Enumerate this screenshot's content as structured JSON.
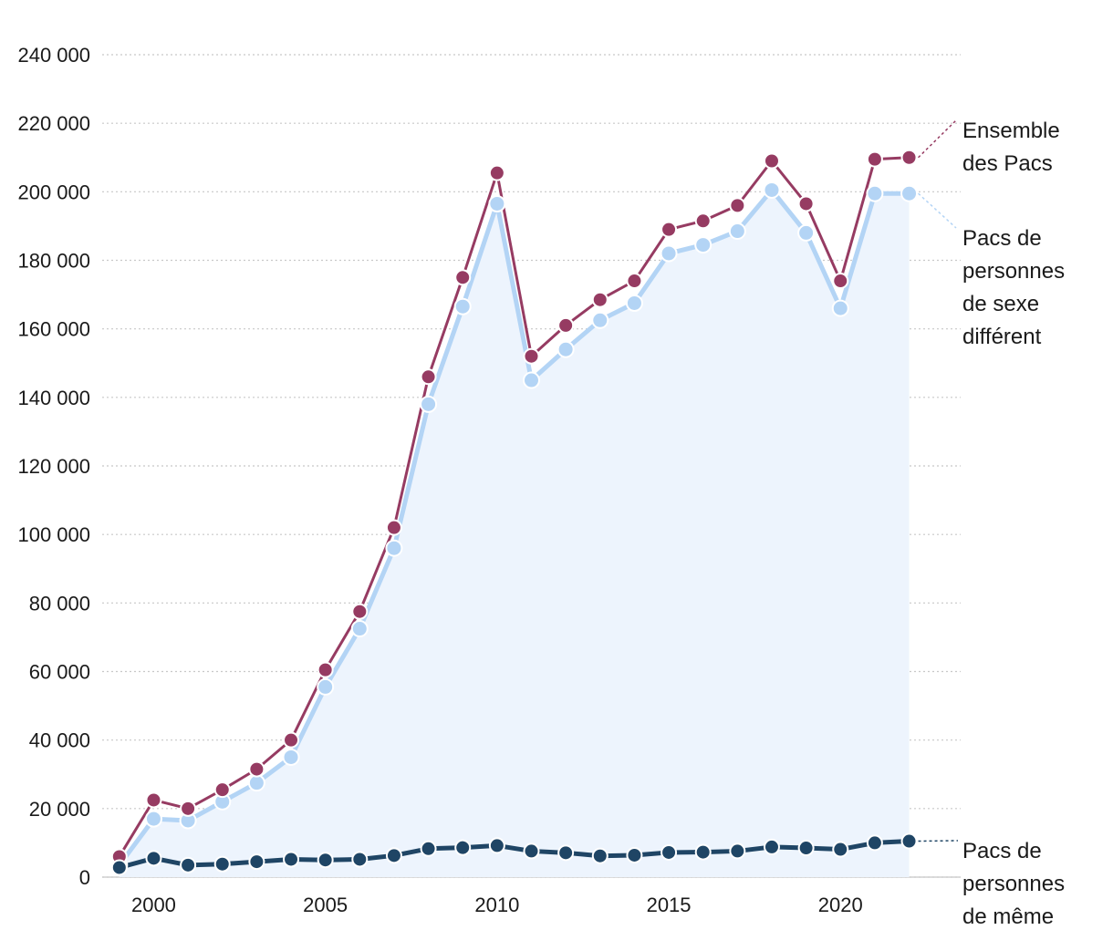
{
  "chart_data": {
    "type": "line",
    "title": "",
    "xlabel": "",
    "ylabel": "",
    "x": [
      1999,
      2000,
      2001,
      2002,
      2003,
      2004,
      2005,
      2006,
      2007,
      2008,
      2009,
      2010,
      2011,
      2012,
      2013,
      2014,
      2015,
      2016,
      2017,
      2018,
      2019,
      2020,
      2021,
      2022
    ],
    "xticks": [
      2000,
      2005,
      2010,
      2015,
      2020
    ],
    "xtick_labels": [
      "2000",
      "2005",
      "2010",
      "2015",
      "2020"
    ],
    "xlim": [
      1998.5,
      2023.5
    ],
    "ylim": [
      0,
      240000
    ],
    "yticks": [
      0,
      20000,
      40000,
      60000,
      80000,
      100000,
      120000,
      140000,
      160000,
      180000,
      200000,
      220000,
      240000
    ],
    "ytick_labels": [
      "0",
      "20 000",
      "40 000",
      "60 000",
      "80 000",
      "100 000",
      "120 000",
      "140 000",
      "160 000",
      "180 000",
      "200 000",
      "220 000",
      "240 000"
    ],
    "grid": true,
    "series": [
      {
        "name": "Pacs de personnes de sexe différent",
        "label_lines": [
          "Pacs de",
          "personnes",
          "de sexe",
          "différent"
        ],
        "color": "#b3d4f5",
        "area_fill": "#edf4fd",
        "values": [
          3500,
          17000,
          16500,
          22000,
          27500,
          35000,
          55500,
          72500,
          96000,
          138000,
          166500,
          196500,
          145000,
          154000,
          162500,
          167500,
          182000,
          184500,
          188500,
          200500,
          188000,
          166000,
          199500,
          199500
        ]
      },
      {
        "name": "Ensemble des Pacs",
        "label_lines": [
          "Ensemble",
          "des Pacs"
        ],
        "color": "#963b62",
        "values": [
          6000,
          22500,
          20000,
          25500,
          31500,
          40000,
          60500,
          77500,
          102000,
          146000,
          175000,
          205500,
          152000,
          161000,
          168500,
          174000,
          189000,
          191500,
          196000,
          209000,
          196500,
          174000,
          209500,
          210000
        ]
      },
      {
        "name": "Pacs de personnes de même sexe",
        "label_lines": [
          "Pacs de",
          "personnes",
          "de même"
        ],
        "color": "#1f4565",
        "values": [
          2800,
          5500,
          3500,
          3800,
          4500,
          5200,
          5000,
          5200,
          6300,
          8300,
          8600,
          9200,
          7600,
          7100,
          6200,
          6400,
          7200,
          7300,
          7600,
          8800,
          8500,
          8100,
          10000,
          10500
        ]
      }
    ]
  }
}
